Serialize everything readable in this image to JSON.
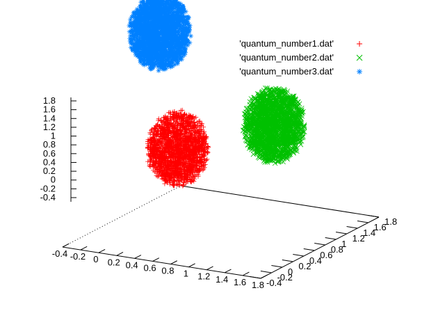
{
  "chart_data": {
    "type": "scatter",
    "title": "",
    "projection": "3d",
    "xlabel": "",
    "ylabel": "",
    "zlabel": "",
    "xlim": [
      -0.4,
      1.8
    ],
    "ylim": [
      -0.4,
      1.8
    ],
    "zlim": [
      -0.4,
      1.8
    ],
    "x_ticks": [
      "-0.4",
      "-0.2",
      "0",
      "0.2",
      "0.4",
      "0.6",
      "0.8",
      "1",
      "1.2",
      "1.4",
      "1.6",
      "1.8"
    ],
    "y_ticks": [
      "-0.4",
      "-0.2",
      "0",
      "0.2",
      "0.4",
      "0.6",
      "0.8",
      "1",
      "1.2",
      "1.4",
      "1.6",
      "1.8"
    ],
    "z_ticks": [
      "-0.4",
      "-0.2",
      "0",
      "0.2",
      "0.4",
      "0.6",
      "0.8",
      "1",
      "1.2",
      "1.4",
      "1.6",
      "1.8"
    ],
    "legend_position": "top-right",
    "series": [
      {
        "name": "'quantum_number1.dat'",
        "marker": "plus",
        "color": "#ff0000",
        "center": [
          0.4,
          0.4,
          0.3
        ],
        "spread": 0.3,
        "n_points": 2000
      },
      {
        "name": "'quantum_number2.dat'",
        "marker": "cross",
        "color": "#00c000",
        "center": [
          1.35,
          0.6,
          0.55
        ],
        "spread": 0.3,
        "n_points": 2000
      },
      {
        "name": "'quantum_number3.dat'",
        "marker": "asterisk",
        "color": "#0080ff",
        "center": [
          0.5,
          -0.1,
          1.35
        ],
        "spread": 0.3,
        "n_points": 2000
      }
    ]
  }
}
